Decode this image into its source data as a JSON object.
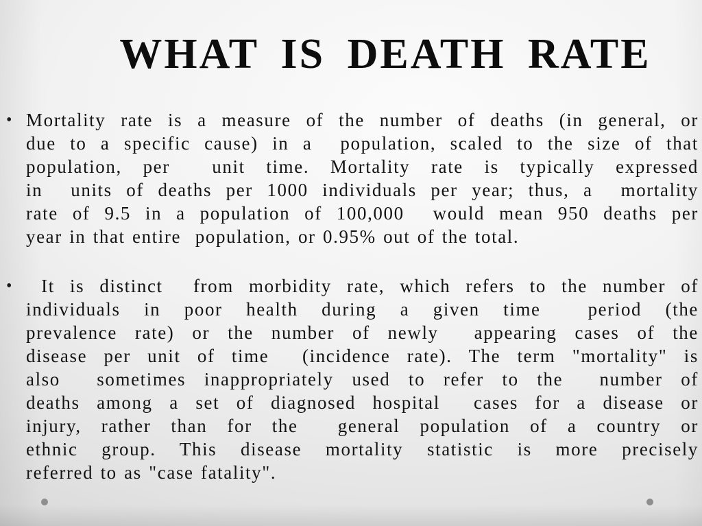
{
  "slide": {
    "title": "WHAT IS DEATH RATE",
    "bullets": [
      {
        "glyph": "•",
        "lines": [
          "Mortality rate is a measure of the number of deaths (in general, or",
          "due to a specific cause) in a  population, scaled to the size of that",
          "population, per  unit time. Mortality rate is typically expressed",
          "in  units of deaths per 1000 individuals per year; thus, a  mortality",
          "rate of 9.5 in a population of 100,000  would mean 950 deaths per",
          "year in that entire  population, or 0.95% out of the total."
        ]
      },
      {
        "glyph": "•",
        "lines": [
          " It is distinct  from morbidity rate, which refers to the number of",
          "individuals in poor health during a given time  period (the",
          "prevalence rate) or the number of newly  appearing cases of the",
          "disease per unit of time  (incidence rate). The term \"mortality\" is",
          "also  sometimes inappropriately used to refer to the  number of",
          "deaths among a set of diagnosed hospital  cases for a disease or",
          "injury, rather than for the  general population of a country or",
          "ethnic group. This disease mortality statistic is more precisely",
          "referred to as \"case fatality\"."
        ]
      }
    ],
    "decorations": {
      "dot_color": "#8e8e8e"
    }
  }
}
